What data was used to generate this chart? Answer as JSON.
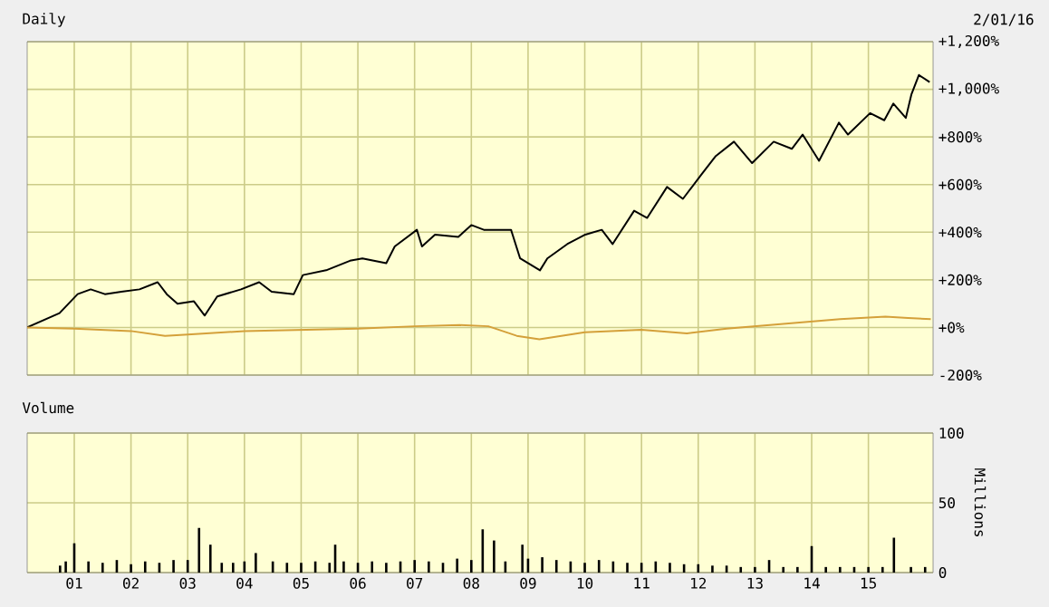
{
  "chart_data": [
    {
      "type": "line",
      "title": "Daily",
      "annotations": [
        "2/01/16"
      ],
      "xlim": [
        2000.17,
        2016.14
      ],
      "ylim": [
        -200,
        1200
      ],
      "xticks": [
        {
          "value": 2001,
          "label": null
        },
        {
          "value": 2002,
          "label": null
        },
        {
          "value": 2003,
          "label": null
        },
        {
          "value": 2004,
          "label": null
        },
        {
          "value": 2005,
          "label": null
        },
        {
          "value": 2006,
          "label": null
        },
        {
          "value": 2007,
          "label": null
        },
        {
          "value": 2008,
          "label": null
        },
        {
          "value": 2009,
          "label": null
        },
        {
          "value": 2010,
          "label": null
        },
        {
          "value": 2011,
          "label": null
        },
        {
          "value": 2012,
          "label": null
        },
        {
          "value": 2013,
          "label": null
        },
        {
          "value": 2014,
          "label": null
        },
        {
          "value": 2015,
          "label": null
        }
      ],
      "yticks": [
        {
          "value": -200,
          "label": "-200%"
        },
        {
          "value": 0,
          "label": "+0%"
        },
        {
          "value": 200,
          "label": "+200%"
        },
        {
          "value": 400,
          "label": "+400%"
        },
        {
          "value": 600,
          "label": "+600%"
        },
        {
          "value": 800,
          "label": "+800%"
        },
        {
          "value": 1000,
          "label": "+1,000%"
        },
        {
          "value": 1200,
          "label": "+1,200%"
        }
      ],
      "tick_labels": "y",
      "grid": true,
      "series": [
        {
          "color": "#000000",
          "x": [
            2000.17,
            2000.74,
            2001.06,
            2001.29,
            2001.54,
            2001.83,
            2002.15,
            2002.47,
            2002.63,
            2002.82,
            2003.11,
            2003.3,
            2003.52,
            2003.94,
            2004.26,
            2004.48,
            2004.87,
            2005.03,
            2005.44,
            2005.86,
            2006.08,
            2006.5,
            2006.65,
            2007.04,
            2007.13,
            2007.36,
            2007.77,
            2008.0,
            2008.22,
            2008.7,
            2008.86,
            2009.21,
            2009.34,
            2009.69,
            2010.01,
            2010.3,
            2010.49,
            2010.87,
            2011.1,
            2011.45,
            2011.73,
            2012.05,
            2012.31,
            2012.63,
            2012.95,
            2013.33,
            2013.65,
            2013.84,
            2014.13,
            2014.48,
            2014.64,
            2015.03,
            2015.28,
            2015.44,
            2015.66,
            2015.76,
            2015.89,
            2016.08
          ],
          "values": [
            0,
            60,
            140,
            160,
            140,
            150,
            160,
            190,
            140,
            100,
            110,
            50,
            130,
            160,
            190,
            150,
            140,
            220,
            240,
            280,
            290,
            270,
            340,
            410,
            340,
            390,
            380,
            430,
            410,
            410,
            290,
            240,
            290,
            350,
            390,
            410,
            350,
            490,
            460,
            590,
            540,
            640,
            720,
            780,
            690,
            780,
            750,
            810,
            700,
            860,
            810,
            900,
            870,
            940,
            880,
            980,
            1060,
            1030
          ]
        },
        {
          "color": "#d4a03a",
          "x": [
            2000.17,
            2001.0,
            2002.0,
            2002.6,
            2003.0,
            2004.0,
            2005.0,
            2006.0,
            2007.0,
            2007.8,
            2008.3,
            2008.8,
            2009.2,
            2010.0,
            2011.0,
            2011.8,
            2012.5,
            2013.5,
            2014.5,
            2015.3,
            2015.7,
            2016.1
          ],
          "values": [
            0,
            -5,
            -15,
            -35,
            -30,
            -15,
            -10,
            -5,
            5,
            10,
            5,
            -35,
            -50,
            -20,
            -10,
            -25,
            -5,
            15,
            35,
            45,
            40,
            35
          ]
        }
      ]
    },
    {
      "type": "bar",
      "title": "Volume",
      "ylabel": "Millions",
      "xlim": [
        2000.17,
        2016.14
      ],
      "ylim": [
        0,
        100
      ],
      "yticks": [
        0,
        50,
        100
      ],
      "xticks": [
        {
          "value": 2001,
          "label": "01"
        },
        {
          "value": 2002,
          "label": "02"
        },
        {
          "value": 2003,
          "label": "03"
        },
        {
          "value": 2004,
          "label": "04"
        },
        {
          "value": 2005,
          "label": "05"
        },
        {
          "value": 2006,
          "label": "06"
        },
        {
          "value": 2007,
          "label": "07"
        },
        {
          "value": 2008,
          "label": "08"
        },
        {
          "value": 2009,
          "label": "09"
        },
        {
          "value": 2010,
          "label": "10"
        },
        {
          "value": 2011,
          "label": "11"
        },
        {
          "value": 2012,
          "label": "12"
        },
        {
          "value": 2013,
          "label": "13"
        },
        {
          "value": 2014,
          "label": "14"
        },
        {
          "value": 2015,
          "label": "15"
        }
      ],
      "grid": true,
      "color": "#000000",
      "x": [
        2000.75,
        2000.85,
        2001.0,
        2001.25,
        2001.5,
        2001.75,
        2002.0,
        2002.25,
        2002.5,
        2002.75,
        2003.0,
        2003.2,
        2003.4,
        2003.6,
        2003.8,
        2004.0,
        2004.2,
        2004.5,
        2004.75,
        2005.0,
        2005.25,
        2005.5,
        2005.6,
        2005.75,
        2006.0,
        2006.25,
        2006.5,
        2006.75,
        2007.0,
        2007.25,
        2007.5,
        2007.75,
        2008.0,
        2008.2,
        2008.4,
        2008.6,
        2008.9,
        2009.0,
        2009.25,
        2009.5,
        2009.75,
        2010.0,
        2010.25,
        2010.5,
        2010.75,
        2011.0,
        2011.25,
        2011.5,
        2011.75,
        2012.0,
        2012.25,
        2012.5,
        2012.75,
        2013.0,
        2013.25,
        2013.5,
        2013.75,
        2014.0,
        2014.25,
        2014.5,
        2014.75,
        2015.0,
        2015.25,
        2015.45,
        2015.75,
        2016.0
      ],
      "values": [
        5,
        8,
        21,
        8,
        7,
        9,
        6,
        8,
        7,
        9,
        9,
        32,
        20,
        7,
        7,
        8,
        14,
        8,
        7,
        7,
        8,
        7,
        20,
        8,
        7,
        8,
        7,
        8,
        9,
        8,
        7,
        10,
        9,
        31,
        23,
        8,
        20,
        10,
        11,
        9,
        8,
        7,
        9,
        8,
        7,
        7,
        8,
        7,
        6,
        6,
        5,
        5,
        4,
        4,
        9,
        4,
        4,
        19,
        4,
        4,
        4,
        4,
        4,
        25,
        4,
        4
      ]
    }
  ]
}
